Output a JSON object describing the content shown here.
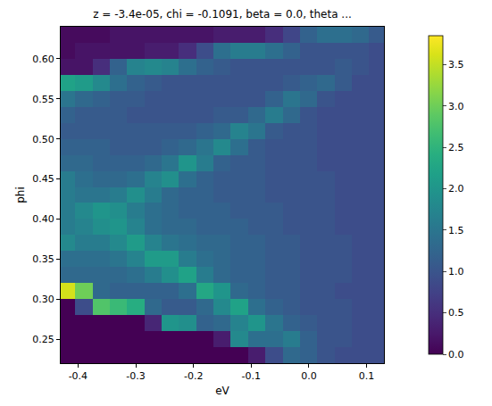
{
  "chart_data": {
    "type": "heatmap",
    "title": "z = -3.4e-05, chi = -0.1091, beta = 0.0, theta ...",
    "x_label": "eV",
    "y_label": "phi",
    "color": "Viridis",
    "grid": false,
    "x": [
      -0.42,
      -0.39,
      -0.36,
      -0.33,
      -0.3,
      -0.27,
      -0.24,
      -0.21,
      -0.18,
      -0.15,
      -0.12,
      -0.09,
      -0.06,
      -0.03,
      0.0,
      0.03,
      0.06,
      0.09,
      0.12
    ],
    "y": [
      0.23,
      0.25,
      0.27,
      0.29,
      0.31,
      0.33,
      0.35,
      0.37,
      0.39,
      0.41,
      0.43,
      0.45,
      0.47,
      0.49,
      0.51,
      0.53,
      0.55,
      0.57,
      0.59,
      0.61,
      0.63
    ],
    "values": [
      [
        0,
        0,
        0,
        0,
        0,
        0,
        0,
        0,
        0,
        0,
        0,
        0.3,
        0.9,
        1.3,
        1.2,
        1.0,
        0.9,
        0.9,
        0.9
      ],
      [
        0,
        0,
        0,
        0,
        0,
        0,
        0,
        0,
        0,
        0.3,
        1.8,
        1.4,
        1.4,
        1.6,
        1.2,
        1.0,
        1.0,
        0.9,
        0.9
      ],
      [
        0,
        0,
        0,
        0,
        0,
        0.4,
        2.0,
        1.9,
        1.2,
        1.3,
        1.7,
        2.0,
        1.5,
        1.2,
        1.1,
        1.0,
        1.0,
        0.9,
        0.9
      ],
      [
        0,
        0.9,
        2.8,
        2.6,
        2.4,
        1.3,
        1.1,
        1.1,
        1.3,
        1.8,
        2.2,
        1.4,
        1.2,
        1.1,
        1.0,
        1.0,
        1.0,
        0.9,
        0.9
      ],
      [
        3.6,
        3.0,
        1.3,
        1.2,
        1.2,
        1.2,
        1.2,
        1.4,
        2.3,
        2.0,
        1.3,
        1.2,
        1.1,
        1.1,
        1.0,
        1.0,
        0.9,
        0.9,
        0.9
      ],
      [
        1.3,
        1.3,
        1.3,
        1.3,
        1.4,
        1.6,
        1.9,
        2.2,
        1.6,
        1.3,
        1.2,
        1.2,
        1.1,
        1.1,
        1.0,
        1.0,
        1.0,
        0.9,
        0.9
      ],
      [
        1.4,
        1.4,
        1.4,
        1.5,
        1.7,
        2.1,
        2.1,
        1.6,
        1.4,
        1.3,
        1.2,
        1.2,
        1.1,
        1.1,
        1.0,
        1.0,
        1.0,
        0.9,
        0.9
      ],
      [
        1.8,
        1.6,
        1.6,
        1.8,
        2.1,
        1.7,
        1.5,
        1.4,
        1.3,
        1.3,
        1.2,
        1.2,
        1.1,
        1.1,
        1.0,
        1.0,
        1.0,
        0.9,
        0.9
      ],
      [
        1.6,
        1.7,
        1.9,
        2.0,
        1.7,
        1.4,
        1.3,
        1.3,
        1.2,
        1.2,
        1.2,
        1.1,
        1.1,
        1.0,
        1.0,
        1.0,
        0.9,
        0.9,
        0.9
      ],
      [
        1.6,
        1.8,
        2.0,
        1.9,
        1.6,
        1.4,
        1.3,
        1.2,
        1.2,
        1.2,
        1.1,
        1.1,
        1.1,
        1.0,
        1.0,
        1.0,
        0.9,
        0.9,
        0.9
      ],
      [
        1.6,
        1.5,
        1.5,
        1.6,
        1.9,
        1.6,
        1.3,
        1.2,
        1.2,
        1.1,
        1.1,
        1.1,
        1.0,
        1.0,
        1.0,
        1.0,
        0.9,
        0.9,
        0.9
      ],
      [
        1.6,
        1.4,
        1.3,
        1.3,
        1.4,
        1.7,
        1.9,
        1.4,
        1.2,
        1.1,
        1.1,
        1.1,
        1.0,
        1.0,
        1.0,
        1.0,
        0.9,
        0.9,
        0.9
      ],
      [
        1.3,
        1.3,
        1.2,
        1.2,
        1.2,
        1.3,
        1.5,
        2.0,
        1.6,
        1.2,
        1.1,
        1.1,
        1.0,
        1.0,
        1.0,
        0.9,
        0.9,
        0.9,
        0.9
      ],
      [
        1.2,
        1.2,
        1.2,
        1.1,
        1.1,
        1.1,
        1.2,
        1.3,
        1.5,
        1.8,
        1.4,
        1.1,
        1.0,
        1.0,
        1.0,
        0.9,
        0.9,
        0.9,
        0.9
      ],
      [
        1.1,
        1.1,
        1.1,
        1.1,
        1.1,
        1.1,
        1.1,
        1.1,
        1.2,
        1.3,
        1.7,
        1.5,
        1.1,
        1.0,
        1.0,
        0.9,
        0.9,
        0.9,
        0.9
      ],
      [
        1.2,
        1.1,
        1.1,
        1.1,
        1.0,
        1.0,
        1.0,
        1.0,
        1.0,
        1.1,
        1.1,
        1.3,
        1.6,
        1.3,
        1.0,
        0.9,
        0.9,
        0.9,
        0.9
      ],
      [
        1.5,
        1.3,
        1.2,
        1.1,
        1.1,
        1.0,
        1.0,
        1.0,
        1.0,
        1.0,
        1.0,
        1.0,
        1.2,
        1.5,
        1.3,
        1.0,
        0.9,
        0.9,
        0.9
      ],
      [
        2.2,
        2.1,
        1.8,
        1.4,
        1.2,
        1.1,
        1.0,
        1.0,
        1.0,
        1.0,
        1.0,
        1.0,
        1.0,
        1.1,
        1.2,
        1.3,
        1.1,
        0.9,
        0.9
      ],
      [
        0.2,
        0.2,
        0.5,
        1.2,
        1.7,
        1.8,
        1.7,
        1.4,
        1.2,
        1.1,
        1.0,
        1.0,
        1.0,
        1.0,
        1.0,
        1.0,
        1.1,
        1.0,
        0.9
      ],
      [
        0.1,
        0.2,
        0.2,
        0.2,
        0.2,
        0.3,
        0.3,
        0.5,
        0.9,
        1.4,
        1.6,
        1.6,
        1.4,
        1.2,
        1.0,
        1.0,
        1.0,
        1.0,
        0.9
      ],
      [
        0.1,
        0.1,
        0.1,
        0.2,
        0.2,
        0.2,
        0.2,
        0.2,
        0.2,
        0.3,
        0.3,
        0.3,
        0.5,
        0.8,
        1.2,
        1.4,
        1.4,
        1.3,
        1.1
      ]
    ],
    "xlim": [
      -0.43,
      0.13
    ],
    "xticks": [
      -0.4,
      -0.3,
      -0.2,
      -0.1,
      {
        "value": 0,
        "label": "0.0"
      },
      0.1
    ],
    "ylim": [
      0.22,
      0.64
    ],
    "yticks": [
      0.25,
      {
        "value": 0.3,
        "label": "0.30"
      },
      0.35,
      {
        "value": 0.4,
        "label": "0.40"
      },
      0.45,
      {
        "value": 0.5,
        "label": "0.50"
      },
      0.55,
      {
        "value": 0.6,
        "label": "0.60"
      }
    ],
    "zlim": [
      0,
      3.85
    ],
    "zticks": [
      {
        "value": 0,
        "label": "0.0"
      },
      0.5,
      {
        "value": 1,
        "label": "1.0"
      },
      1.5,
      {
        "value": 2,
        "label": "2.0"
      },
      2.5,
      {
        "value": 3,
        "label": "3.0"
      },
      3.5
    ]
  }
}
